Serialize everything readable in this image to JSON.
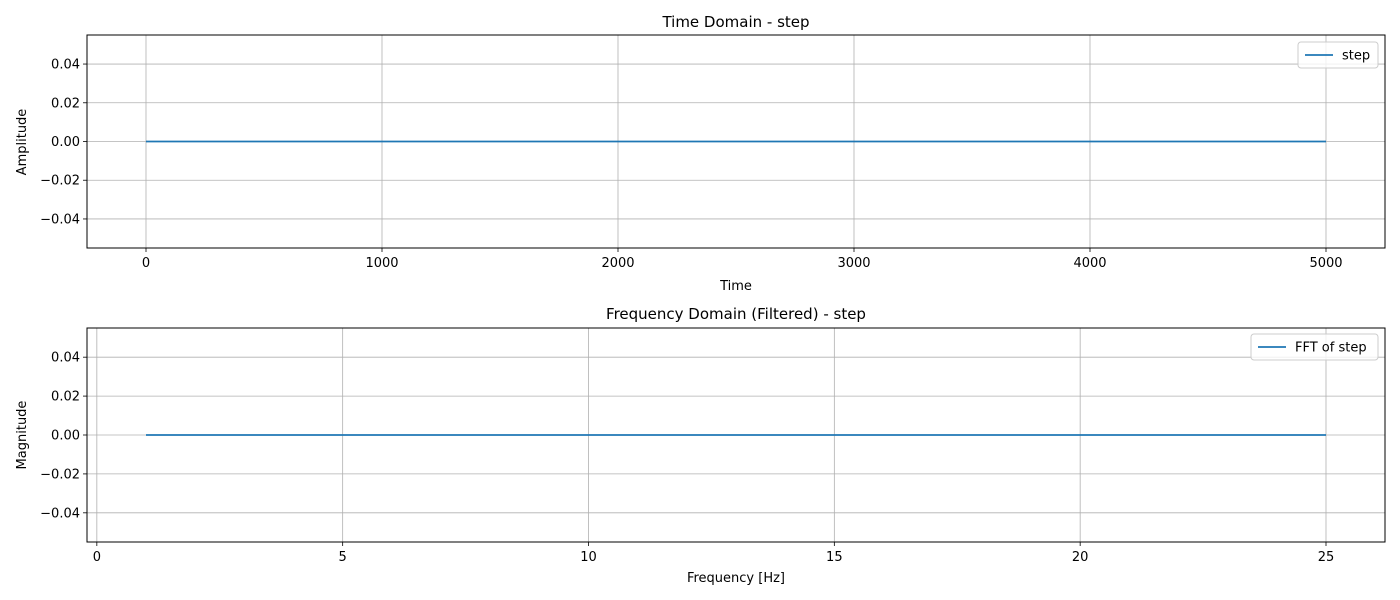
{
  "chart_data": [
    {
      "type": "line",
      "title": "Time Domain - step",
      "xlabel": "Time",
      "ylabel": "Amplitude",
      "xlim": [
        -250,
        5250
      ],
      "ylim": [
        -0.055,
        0.055
      ],
      "xticks": [
        0,
        1000,
        2000,
        3000,
        4000,
        5000
      ],
      "xtick_labels": [
        "0",
        "1000",
        "2000",
        "3000",
        "4000",
        "5000"
      ],
      "yticks": [
        -0.04,
        -0.02,
        0.0,
        0.02,
        0.04
      ],
      "ytick_labels": [
        "−0.04",
        "−0.02",
        "0.00",
        "0.02",
        "0.04"
      ],
      "grid": true,
      "legend_position": "top-right",
      "series": [
        {
          "name": "step",
          "color": "#1f77b4",
          "x": [
            0,
            5000
          ],
          "y": [
            0,
            0
          ]
        }
      ]
    },
    {
      "type": "line",
      "title": "Frequency Domain (Filtered) - step",
      "xlabel": "Frequency [Hz]",
      "ylabel": "Magnitude",
      "xlim": [
        -0.2,
        26.2
      ],
      "ylim": [
        -0.055,
        0.055
      ],
      "xticks": [
        0,
        5,
        10,
        15,
        20,
        25
      ],
      "xtick_labels": [
        "0",
        "5",
        "10",
        "15",
        "20",
        "25"
      ],
      "yticks": [
        -0.04,
        -0.02,
        0.0,
        0.02,
        0.04
      ],
      "ytick_labels": [
        "−0.04",
        "−0.02",
        "0.00",
        "0.02",
        "0.04"
      ],
      "grid": true,
      "legend_position": "top-right",
      "series": [
        {
          "name": "FFT of step",
          "color": "#1f77b4",
          "x": [
            1,
            25
          ],
          "y": [
            0,
            0
          ]
        }
      ]
    }
  ]
}
